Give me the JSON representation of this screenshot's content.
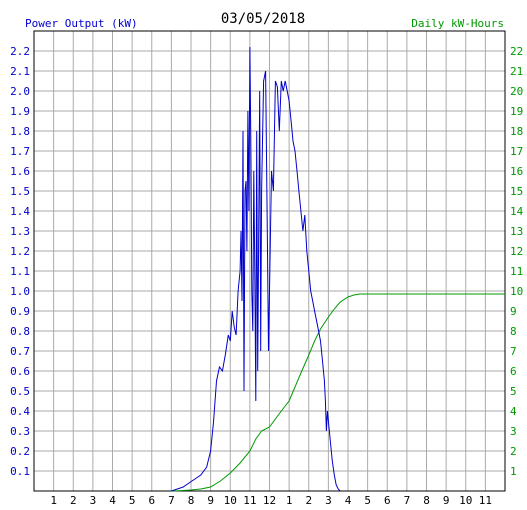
{
  "chart_data": {
    "type": "line",
    "title": "03/05/2018",
    "left_axis_label": "Power Output (kW)",
    "right_axis_label": "Daily kW-Hours",
    "x_tick_labels": [
      "1",
      "2",
      "3",
      "4",
      "5",
      "6",
      "7",
      "8",
      "9",
      "10",
      "11",
      "12",
      "1",
      "2",
      "3",
      "4",
      "5",
      "6",
      "7",
      "8",
      "9",
      "10",
      "11"
    ],
    "x_range_hours": [
      0,
      24
    ],
    "y_left_range": [
      0,
      2.3
    ],
    "y_left_ticks": [
      "0.1",
      "0.2",
      "0.3",
      "0.4",
      "0.5",
      "0.6",
      "0.7",
      "0.8",
      "0.9",
      "1.0",
      "1.1",
      "1.2",
      "1.3",
      "1.4",
      "1.5",
      "1.6",
      "1.7",
      "1.8",
      "1.9",
      "2.0",
      "2.1",
      "2.2"
    ],
    "y_right_range": [
      0,
      23
    ],
    "y_right_ticks": [
      "1",
      "2",
      "3",
      "4",
      "5",
      "6",
      "7",
      "8",
      "9",
      "10",
      "11",
      "12",
      "13",
      "14",
      "15",
      "16",
      "17",
      "18",
      "19",
      "20",
      "21",
      "22"
    ],
    "grid": true,
    "colors": {
      "power": "#0000cc",
      "energy": "#009900",
      "grid": "#aaaaaa",
      "left_axis": "#0000cc",
      "right_axis": "#009900",
      "title": "#000000"
    },
    "series": [
      {
        "name": "Power Output (kW)",
        "axis": "left",
        "points": [
          [
            7.0,
            0
          ],
          [
            7.3,
            0.01
          ],
          [
            7.6,
            0.02
          ],
          [
            7.9,
            0.04
          ],
          [
            8.2,
            0.06
          ],
          [
            8.5,
            0.08
          ],
          [
            8.8,
            0.12
          ],
          [
            9.0,
            0.2
          ],
          [
            9.15,
            0.35
          ],
          [
            9.3,
            0.55
          ],
          [
            9.45,
            0.62
          ],
          [
            9.6,
            0.6
          ],
          [
            9.75,
            0.68
          ],
          [
            9.9,
            0.78
          ],
          [
            10.0,
            0.75
          ],
          [
            10.1,
            0.9
          ],
          [
            10.2,
            0.82
          ],
          [
            10.3,
            0.78
          ],
          [
            10.4,
            1.0
          ],
          [
            10.5,
            1.1
          ],
          [
            10.55,
            1.3
          ],
          [
            10.6,
            0.95
          ],
          [
            10.65,
            1.8
          ],
          [
            10.7,
            0.5
          ],
          [
            10.75,
            1.5
          ],
          [
            10.8,
            1.55
          ],
          [
            10.85,
            1.2
          ],
          [
            10.9,
            1.9
          ],
          [
            10.95,
            1.4
          ],
          [
            11.0,
            2.22
          ],
          [
            11.05,
            1.7
          ],
          [
            11.1,
            1.0
          ],
          [
            11.15,
            0.8
          ],
          [
            11.2,
            1.6
          ],
          [
            11.25,
            1.1
          ],
          [
            11.3,
            0.45
          ],
          [
            11.35,
            1.8
          ],
          [
            11.4,
            0.6
          ],
          [
            11.45,
            1.3
          ],
          [
            11.5,
            2.0
          ],
          [
            11.55,
            0.7
          ],
          [
            11.6,
            1.5
          ],
          [
            11.7,
            2.05
          ],
          [
            11.8,
            2.1
          ],
          [
            11.9,
            1.2
          ],
          [
            11.95,
            0.7
          ],
          [
            12.0,
            1.0
          ],
          [
            12.1,
            1.6
          ],
          [
            12.2,
            1.5
          ],
          [
            12.3,
            2.05
          ],
          [
            12.4,
            2.02
          ],
          [
            12.5,
            1.8
          ],
          [
            12.6,
            2.05
          ],
          [
            12.7,
            2.0
          ],
          [
            12.8,
            2.05
          ],
          [
            12.9,
            2.0
          ],
          [
            13.0,
            1.95
          ],
          [
            13.1,
            1.85
          ],
          [
            13.2,
            1.75
          ],
          [
            13.3,
            1.7
          ],
          [
            13.4,
            1.6
          ],
          [
            13.5,
            1.5
          ],
          [
            13.6,
            1.4
          ],
          [
            13.7,
            1.3
          ],
          [
            13.8,
            1.38
          ],
          [
            13.9,
            1.2
          ],
          [
            14.0,
            1.1
          ],
          [
            14.1,
            1.0
          ],
          [
            14.2,
            0.95
          ],
          [
            14.3,
            0.9
          ],
          [
            14.4,
            0.85
          ],
          [
            14.5,
            0.8
          ],
          [
            14.6,
            0.75
          ],
          [
            14.7,
            0.65
          ],
          [
            14.8,
            0.55
          ],
          [
            14.85,
            0.45
          ],
          [
            14.9,
            0.3
          ],
          [
            14.95,
            0.4
          ],
          [
            15.0,
            0.35
          ],
          [
            15.1,
            0.25
          ],
          [
            15.2,
            0.15
          ],
          [
            15.3,
            0.08
          ],
          [
            15.4,
            0.03
          ],
          [
            15.5,
            0.01
          ],
          [
            15.6,
            0
          ]
        ]
      },
      {
        "name": "Daily kW-Hours",
        "axis": "right",
        "points": [
          [
            7.0,
            0
          ],
          [
            7.5,
            0.02
          ],
          [
            8.0,
            0.05
          ],
          [
            8.5,
            0.1
          ],
          [
            9.0,
            0.2
          ],
          [
            9.5,
            0.5
          ],
          [
            10.0,
            0.9
          ],
          [
            10.5,
            1.4
          ],
          [
            11.0,
            2.0
          ],
          [
            11.3,
            2.6
          ],
          [
            11.6,
            3.0
          ],
          [
            12.0,
            3.2
          ],
          [
            12.3,
            3.6
          ],
          [
            12.6,
            4.0
          ],
          [
            13.0,
            4.5
          ],
          [
            13.3,
            5.2
          ],
          [
            13.6,
            5.9
          ],
          [
            14.0,
            6.8
          ],
          [
            14.3,
            7.5
          ],
          [
            14.6,
            8.1
          ],
          [
            15.0,
            8.7
          ],
          [
            15.3,
            9.1
          ],
          [
            15.6,
            9.45
          ],
          [
            16.0,
            9.7
          ],
          [
            16.3,
            9.8
          ],
          [
            16.6,
            9.85
          ],
          [
            17.0,
            9.85
          ],
          [
            20.0,
            9.85
          ],
          [
            24.0,
            9.85
          ]
        ]
      }
    ]
  }
}
